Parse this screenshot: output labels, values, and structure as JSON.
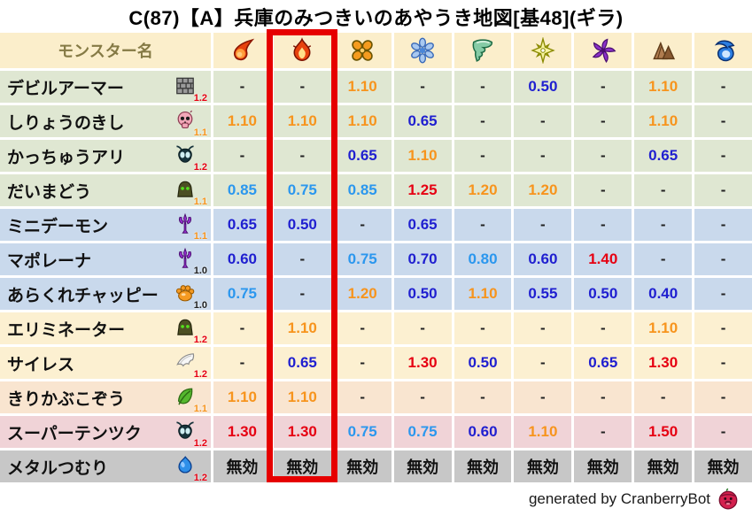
{
  "title": "C(87)【A】兵庫のみつきいのあやうき地図[基48](ギラ)",
  "colors": {
    "header_bg": "#fbeecb",
    "header_text": "#857a45",
    "value_red": "#e60012",
    "value_orange": "#f7941d",
    "value_lightblue": "#2b97ee",
    "value_darkblue": "#1f1fd0",
    "badge_red": "#e60012",
    "badge_orange": "#f7941d",
    "badge_black": "#222222",
    "highlight_border": "#e60000",
    "family_green": "#dfe7d2",
    "family_blue": "#c9d9ec",
    "family_cream": "#fcf0d1",
    "family_peach": "#f9e5d0",
    "family_pink": "#f0d3d7",
    "family_gray": "#c7c7c7"
  },
  "chart_data": {
    "type": "table",
    "title": "C(87)【A】兵庫のみつきいのあやうき地図[基48](ギラ)",
    "name_column_header": "モンスター名",
    "no_effect_label": "無効",
    "highlighted_column_index": 1,
    "columns": [
      {
        "icon": "fireball-icon",
        "highlighted": false
      },
      {
        "icon": "flame-icon",
        "highlighted": true
      },
      {
        "icon": "explosion-icon",
        "highlighted": false
      },
      {
        "icon": "snowflake-icon",
        "highlighted": false
      },
      {
        "icon": "tornado-icon",
        "highlighted": false
      },
      {
        "icon": "sparkle-icon",
        "highlighted": false
      },
      {
        "icon": "pinwheel-icon",
        "highlighted": false
      },
      {
        "icon": "mountain-icon",
        "highlighted": false
      },
      {
        "icon": "wave-icon",
        "highlighted": false
      }
    ],
    "rows": [
      {
        "name": "デビルアーマー",
        "icon": "brick-armor-icon",
        "badge": "1.2",
        "family": "green",
        "values": [
          "-",
          "-",
          "1.10",
          "-",
          "-",
          "0.50",
          "-",
          "1.10",
          "-"
        ]
      },
      {
        "name": "しりょうのきし",
        "icon": "skull-icon",
        "badge": "1.1",
        "family": "green",
        "values": [
          "1.10",
          "1.10",
          "1.10",
          "0.65",
          "-",
          "-",
          "-",
          "1.10",
          "-"
        ]
      },
      {
        "name": "かっちゅうアリ",
        "icon": "bug-icon",
        "badge": "1.2",
        "family": "green",
        "values": [
          "-",
          "-",
          "0.65",
          "1.10",
          "-",
          "-",
          "-",
          "0.65",
          "-"
        ]
      },
      {
        "name": "だいまどう",
        "icon": "hooded-monster-icon",
        "badge": "1.1",
        "family": "green",
        "values": [
          "0.85",
          "0.75",
          "0.85",
          "1.25",
          "1.20",
          "1.20",
          "-",
          "-",
          "-"
        ]
      },
      {
        "name": "ミニデーモン",
        "icon": "trident-icon",
        "badge": "1.1",
        "family": "blue",
        "values": [
          "0.65",
          "0.50",
          "-",
          "0.65",
          "-",
          "-",
          "-",
          "-",
          "-"
        ]
      },
      {
        "name": "マポレーナ",
        "icon": "trident-icon",
        "badge": "1.0",
        "family": "blue",
        "values": [
          "0.60",
          "-",
          "0.75",
          "0.70",
          "0.80",
          "0.60",
          "1.40",
          "-",
          "-"
        ]
      },
      {
        "name": "あらくれチャッピー",
        "icon": "paw-icon",
        "badge": "1.0",
        "family": "blue",
        "values": [
          "0.75",
          "-",
          "1.20",
          "0.50",
          "1.10",
          "0.55",
          "0.50",
          "0.40",
          "-"
        ]
      },
      {
        "name": "エリミネーター",
        "icon": "hooded-monster-icon",
        "badge": "1.2",
        "family": "cream",
        "values": [
          "-",
          "1.10",
          "-",
          "-",
          "-",
          "-",
          "-",
          "1.10",
          "-"
        ]
      },
      {
        "name": "サイレス",
        "icon": "wing-icon",
        "badge": "1.2",
        "family": "cream",
        "values": [
          "-",
          "0.65",
          "-",
          "1.30",
          "0.50",
          "-",
          "0.65",
          "1.30",
          "-"
        ]
      },
      {
        "name": "きりかぶこぞう",
        "icon": "leaf-icon",
        "badge": "1.1",
        "family": "peach",
        "values": [
          "1.10",
          "1.10",
          "-",
          "-",
          "-",
          "-",
          "-",
          "-",
          "-"
        ]
      },
      {
        "name": "スーパーテンツク",
        "icon": "bug-icon",
        "badge": "1.2",
        "family": "pink",
        "values": [
          "1.30",
          "1.30",
          "0.75",
          "0.75",
          "0.60",
          "1.10",
          "-",
          "1.50",
          "-"
        ]
      },
      {
        "name": "メタルつむり",
        "icon": "slime-icon",
        "badge": "1.2",
        "family": "gray",
        "values": [
          "無効",
          "無効",
          "無効",
          "無効",
          "無効",
          "無効",
          "無効",
          "無効",
          "無効"
        ]
      }
    ]
  },
  "footer": {
    "credit": "generated by CranberryBot",
    "icon": "cranberry-bot-icon"
  }
}
